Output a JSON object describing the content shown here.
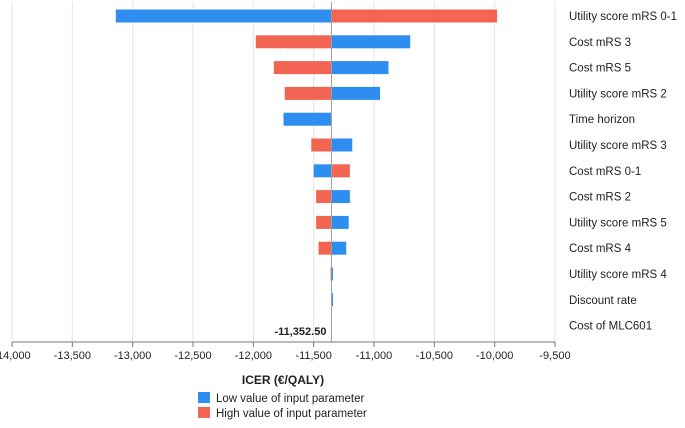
{
  "chart_data": {
    "type": "bar",
    "orientation": "horizontal",
    "baseline_value": -11352.5,
    "baseline_label": "-11,352.50",
    "xlabel": "ICER (€/QALY)",
    "xlim": [
      -14000,
      -9500
    ],
    "xticks": [
      -14000,
      -13500,
      -13000,
      -12500,
      -12000,
      -11500,
      -11000,
      -10500,
      -10000,
      -9500
    ],
    "xtick_labels": [
      "-14,000",
      "-13,500",
      "-13,000",
      "-12,500",
      "-12,000",
      "-11,500",
      "-11,000",
      "-10,500",
      "-10,000",
      "-9,500"
    ],
    "grid": "vertical",
    "legend_position": "bottom-center",
    "categories": [
      "Utility score mRS 0-1",
      "Cost mRS 3",
      "Cost mRS 5",
      "Utility score mRS 2",
      "Time horizon",
      "Utility score mRS 3",
      "Cost mRS 0-1",
      "Cost mRS 2",
      "Utility score mRS 5",
      "Cost mRS 4",
      "Utility score mRS 4",
      "Discount rate",
      "Cost of MLC601"
    ],
    "series": [
      {
        "name": "Low value of input parameter",
        "color": "#2d8ef0",
        "values": [
          -13140,
          -10700,
          -10880,
          -10950,
          -11750,
          -11180,
          -11500,
          -11200,
          -11210,
          -11230,
          -11340,
          -11340,
          -11352.5
        ]
      },
      {
        "name": "High value of input parameter",
        "color": "#f26552",
        "values": [
          -9980,
          -11980,
          -11830,
          -11740,
          -11352.5,
          -11520,
          -11200,
          -11480,
          -11480,
          -11460,
          -11360,
          -11352.5,
          -11352.5
        ]
      }
    ]
  }
}
